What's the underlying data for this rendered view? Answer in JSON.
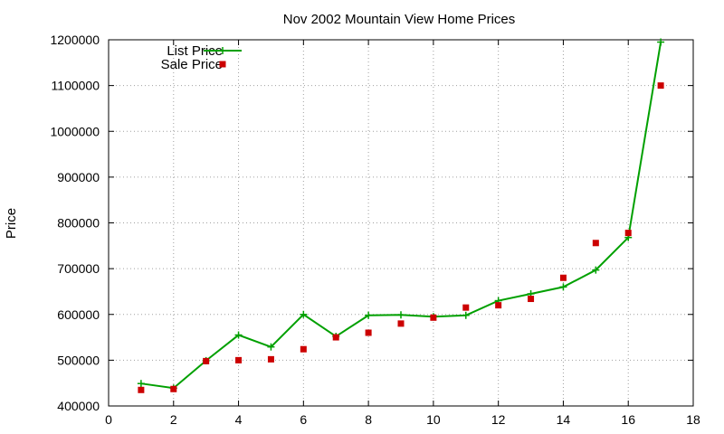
{
  "chart_data": {
    "type": "line",
    "title": "Nov 2002 Mountain View Home Prices",
    "xlabel": "",
    "ylabel": "Price",
    "xlim": [
      0,
      18
    ],
    "ylim": [
      400000,
      1200000
    ],
    "xticks": [
      0,
      2,
      4,
      6,
      8,
      10,
      12,
      14,
      16,
      18
    ],
    "yticks": [
      400000,
      500000,
      600000,
      700000,
      800000,
      900000,
      1000000,
      1100000,
      1200000
    ],
    "grid": true,
    "legend_position": "top-left",
    "series": [
      {
        "name": "List Price",
        "style": "line-points",
        "marker": "plus",
        "color": "#00a000",
        "x": [
          1,
          2,
          3,
          4,
          5,
          6,
          7,
          8,
          9,
          10,
          11,
          12,
          13,
          14,
          15,
          16,
          17
        ],
        "y": [
          449000,
          439000,
          499000,
          555000,
          529000,
          600000,
          552000,
          598000,
          599000,
          595000,
          598000,
          630000,
          645000,
          660000,
          697000,
          768000,
          1195000
        ]
      },
      {
        "name": "Sale Price",
        "style": "points",
        "marker": "square",
        "color": "#cc0000",
        "x": [
          1,
          2,
          3,
          4,
          5,
          6,
          7,
          8,
          9,
          10,
          11,
          12,
          13,
          14,
          15,
          16,
          17
        ],
        "y": [
          435000,
          437000,
          498000,
          500000,
          502000,
          524000,
          550000,
          560000,
          580000,
          593000,
          615000,
          620000,
          634000,
          680000,
          756000,
          778000,
          1100000
        ]
      }
    ]
  }
}
